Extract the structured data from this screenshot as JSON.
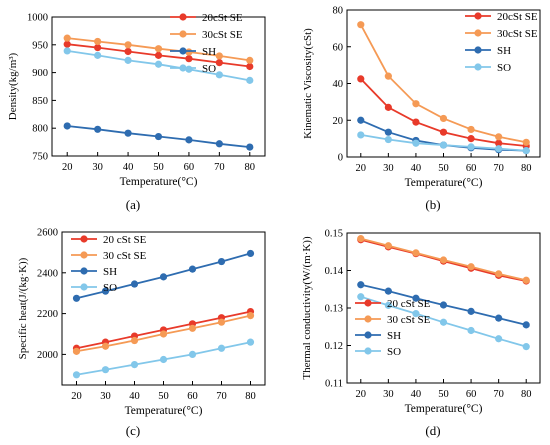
{
  "palette": {
    "axis": "#000000",
    "plot_bg": "#ffffff"
  },
  "chart_data": [
    {
      "id": "a",
      "type": "line",
      "panel_label": "(a)",
      "title": "",
      "xlabel": "Temperature(°C)",
      "ylabel": "Density(kg/m³)",
      "x": [
        20,
        30,
        40,
        50,
        60,
        70,
        80
      ],
      "xlim": [
        15,
        85
      ],
      "ylim": [
        750,
        1000
      ],
      "xticks": [
        20,
        30,
        40,
        50,
        60,
        70,
        80
      ],
      "yticks": [
        750,
        800,
        850,
        900,
        950,
        1000
      ],
      "grid": false,
      "legend_position": "top-right",
      "series": [
        {
          "name": "20cSt SE",
          "color": "#e83a2a",
          "values": [
            951,
            945,
            938,
            931,
            925,
            918,
            911
          ]
        },
        {
          "name": "30cSt SE",
          "color": "#f59a55",
          "values": [
            962,
            956,
            950,
            943,
            937,
            930,
            922
          ]
        },
        {
          "name": "SH",
          "color": "#2e6cb0",
          "values": [
            804,
            798,
            791,
            785,
            779,
            772,
            766
          ]
        },
        {
          "name": "SO",
          "color": "#82c7ea",
          "values": [
            939,
            931,
            922,
            915,
            906,
            896,
            886
          ]
        }
      ]
    },
    {
      "id": "b",
      "type": "line",
      "panel_label": "(b)",
      "title": "",
      "xlabel": "Temperature(°C)",
      "ylabel": "Kinematic Viscosity(cSt)",
      "x": [
        20,
        30,
        40,
        50,
        60,
        70,
        80
      ],
      "xlim": [
        15,
        85
      ],
      "ylim": [
        0,
        80
      ],
      "xticks": [
        20,
        30,
        40,
        50,
        60,
        70,
        80
      ],
      "yticks": [
        0,
        20,
        40,
        60,
        80
      ],
      "grid": false,
      "legend_position": "top-right",
      "series": [
        {
          "name": "20cSt SE",
          "color": "#e83a2a",
          "values": [
            42.5,
            27,
            19,
            13.5,
            10,
            7.5,
            6
          ]
        },
        {
          "name": "30cSt SE",
          "color": "#f59a55",
          "values": [
            72,
            44,
            29,
            21,
            15,
            11,
            8
          ]
        },
        {
          "name": "SH",
          "color": "#2e6cb0",
          "values": [
            20,
            13.5,
            9,
            6.5,
            5,
            4,
            3.5
          ]
        },
        {
          "name": "SO",
          "color": "#82c7ea",
          "values": [
            12,
            9.5,
            7.5,
            6.5,
            5.5,
            4.5,
            3.5
          ]
        }
      ]
    },
    {
      "id": "c",
      "type": "line",
      "panel_label": "(c)",
      "title": "",
      "xlabel": "Temperature(°C)",
      "ylabel": "Specific heat(J/(kg·K))",
      "x": [
        20,
        30,
        40,
        50,
        60,
        70,
        80
      ],
      "xlim": [
        15,
        85
      ],
      "ylim": [
        1850,
        2600
      ],
      "xticks": [
        20,
        30,
        40,
        50,
        60,
        70,
        80
      ],
      "yticks": [
        2000,
        2200,
        2400,
        2600
      ],
      "grid": false,
      "legend_position": "top-left",
      "series": [
        {
          "name": "20 cSt SE",
          "color": "#e83a2a",
          "values": [
            2030,
            2060,
            2090,
            2120,
            2150,
            2180,
            2210
          ]
        },
        {
          "name": "30 cSt SE",
          "color": "#f59a55",
          "values": [
            2015,
            2040,
            2068,
            2100,
            2128,
            2158,
            2190
          ]
        },
        {
          "name": "SH",
          "color": "#2e6cb0",
          "values": [
            2275,
            2310,
            2345,
            2380,
            2418,
            2455,
            2495
          ]
        },
        {
          "name": "SO",
          "color": "#82c7ea",
          "values": [
            1900,
            1925,
            1950,
            1975,
            2000,
            2030,
            2060
          ]
        }
      ]
    },
    {
      "id": "d",
      "type": "line",
      "panel_label": "(d)",
      "title": "",
      "xlabel": "Temperature(°C)",
      "ylabel": "Thermal conductivity(W/(m·K))",
      "x": [
        20,
        30,
        40,
        50,
        60,
        70,
        80
      ],
      "xlim": [
        15,
        85
      ],
      "ylim": [
        0.11,
        0.15
      ],
      "xticks": [
        20,
        30,
        40,
        50,
        60,
        70,
        80
      ],
      "yticks": [
        0.11,
        0.12,
        0.13,
        0.14,
        0.15
      ],
      "grid": false,
      "legend_position": "bottom-left",
      "series": [
        {
          "name": "20 cSt SE",
          "color": "#e83a2a",
          "values": [
            0.1482,
            0.1463,
            0.1445,
            0.1425,
            0.1406,
            0.1387,
            0.1372
          ]
        },
        {
          "name": "30 cSt SE",
          "color": "#f59a55",
          "values": [
            0.1485,
            0.1466,
            0.1447,
            0.1428,
            0.141,
            0.1391,
            0.1374
          ]
        },
        {
          "name": "SH",
          "color": "#2e6cb0",
          "values": [
            0.1362,
            0.1345,
            0.1326,
            0.1308,
            0.1291,
            0.1273,
            0.1255
          ]
        },
        {
          "name": "SO",
          "color": "#82c7ea",
          "values": [
            0.133,
            0.1307,
            0.1285,
            0.1262,
            0.124,
            0.1218,
            0.1197
          ]
        }
      ]
    }
  ]
}
